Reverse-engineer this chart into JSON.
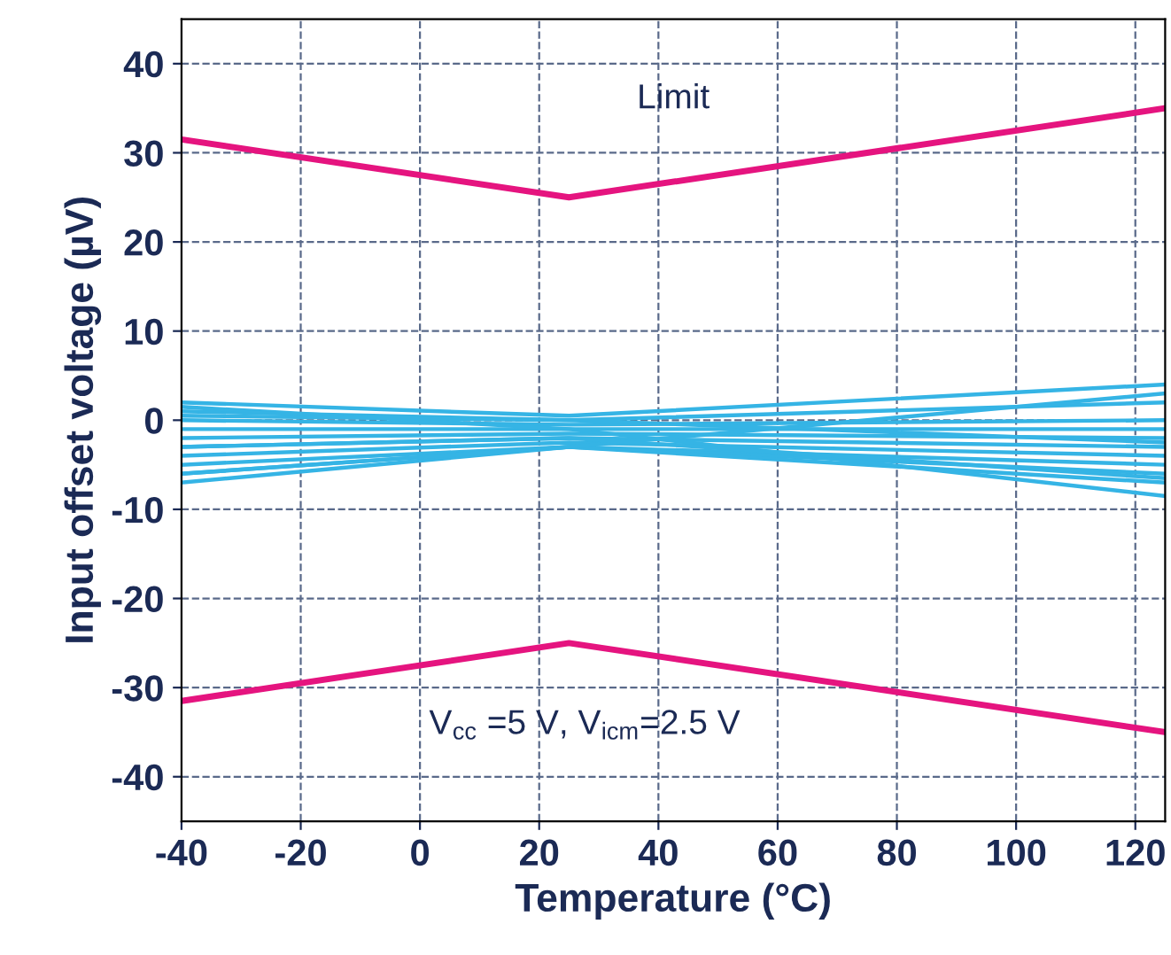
{
  "chart_data": {
    "type": "line",
    "xlabel": "Temperature (°C)",
    "ylabel": "Input offset voltage (µV)",
    "x": [
      -40,
      25,
      125
    ],
    "xlim": [
      -40,
      125
    ],
    "xticks": [
      -40,
      -20,
      0,
      20,
      40,
      60,
      80,
      100,
      120
    ],
    "ylim": [
      -45,
      45
    ],
    "yticks": [
      -40,
      -30,
      -20,
      -10,
      0,
      10,
      20,
      30,
      40
    ],
    "grid": true,
    "legend": false,
    "line_style": "solid",
    "marker": "none",
    "series": [
      {
        "color": "#e5147f",
        "values": [
          31.5,
          25,
          35
        ]
      },
      {
        "color": "#e5147f",
        "values": [
          -31.5,
          -25,
          -35
        ]
      },
      {
        "color": "#35b4e5",
        "values": [
          2,
          0.5,
          4
        ]
      },
      {
        "color": "#35b4e5",
        "values": [
          1,
          0,
          2
        ]
      },
      {
        "color": "#35b4e5",
        "values": [
          0,
          -0.5,
          0
        ]
      },
      {
        "color": "#35b4e5",
        "values": [
          -1,
          -1,
          -1
        ]
      },
      {
        "color": "#35b4e5",
        "values": [
          -2,
          -1.5,
          -2
        ]
      },
      {
        "color": "#35b4e5",
        "values": [
          -3,
          -2,
          -3
        ]
      },
      {
        "color": "#35b4e5",
        "values": [
          -4,
          -2.5,
          -4
        ]
      },
      {
        "color": "#35b4e5",
        "values": [
          -5,
          -3,
          -5
        ]
      },
      {
        "color": "#35b4e5",
        "values": [
          -6,
          -3,
          -6
        ]
      },
      {
        "color": "#35b4e5",
        "values": [
          -7,
          -3,
          -7
        ]
      },
      {
        "color": "#35b4e5",
        "values": [
          1.5,
          -1,
          -8.5
        ]
      },
      {
        "color": "#35b4e5",
        "values": [
          -6,
          -3,
          3
        ]
      },
      {
        "color": "#35b4e5",
        "values": [
          -3,
          -2,
          -6.5
        ]
      },
      {
        "color": "#35b4e5",
        "values": [
          0.5,
          0,
          -2.5
        ]
      }
    ],
    "annotations": [
      "Limit",
      "V$_{cc}$ =5 V, V$_{icm}$=2.5 V"
    ]
  }
}
